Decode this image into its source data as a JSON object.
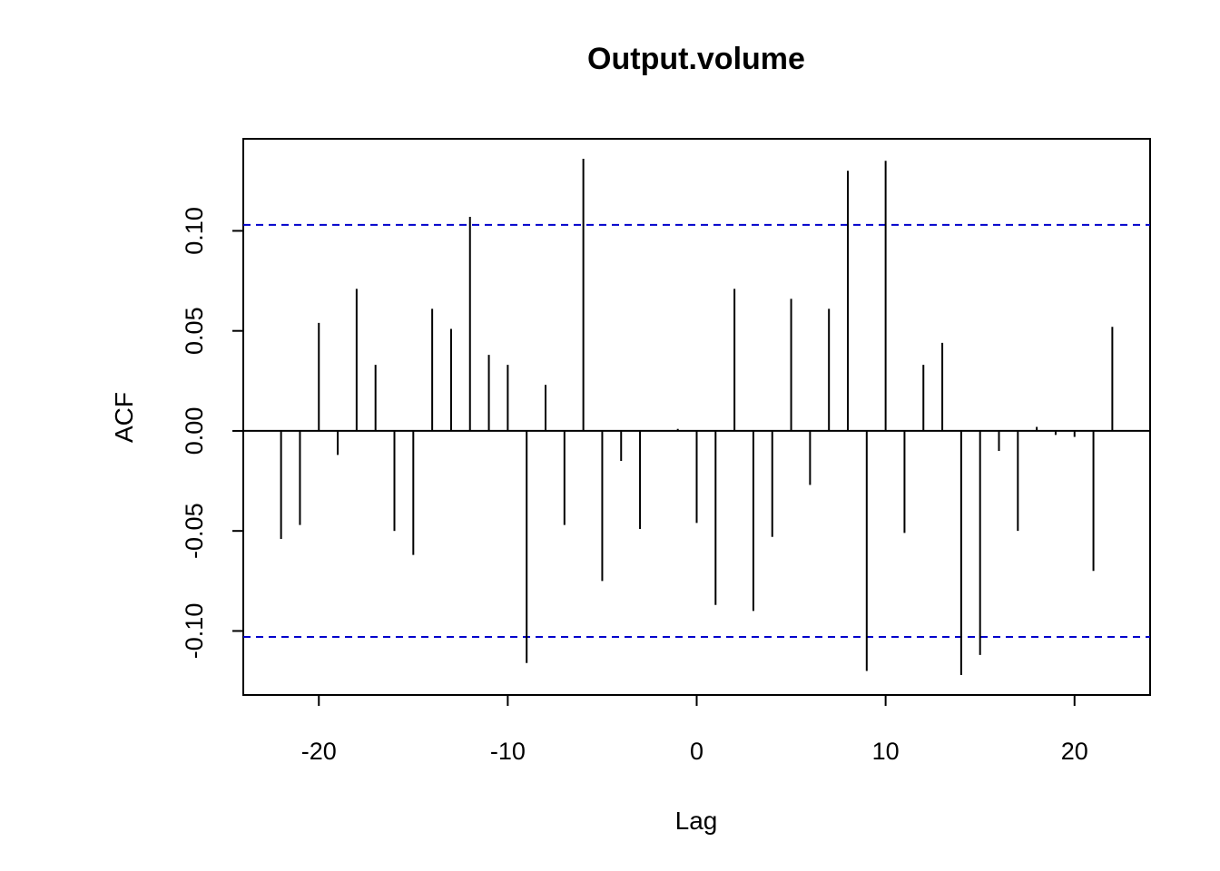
{
  "chart_data": {
    "type": "bar",
    "title": "Output.volume",
    "xlabel": "Lag",
    "ylabel": "ACF",
    "xlim": [
      -24,
      24
    ],
    "ylim": [
      -0.132,
      0.146
    ],
    "x_ticks": [
      -20,
      -10,
      0,
      10,
      20
    ],
    "x_tick_labels": [
      "-20",
      "-10",
      "0",
      "10",
      "20"
    ],
    "y_ticks": [
      -0.1,
      -0.05,
      0.0,
      0.05,
      0.1
    ],
    "y_tick_labels": [
      "-0.10",
      "-0.05",
      "0.00",
      "0.05",
      "0.10"
    ],
    "confidence_bound": 0.103,
    "colors": {
      "bars": "#000000",
      "bounds": "#0000cc",
      "frame": "#000000"
    },
    "x": [
      -22,
      -21,
      -20,
      -19,
      -18,
      -17,
      -16,
      -15,
      -14,
      -13,
      -12,
      -11,
      -10,
      -9,
      -8,
      -7,
      -6,
      -5,
      -4,
      -3,
      -2,
      -1,
      0,
      1,
      2,
      3,
      4,
      5,
      6,
      7,
      8,
      9,
      10,
      11,
      12,
      13,
      14,
      15,
      16,
      17,
      18,
      19,
      20,
      21,
      22
    ],
    "values": [
      -0.054,
      -0.047,
      0.054,
      -0.012,
      0.071,
      0.033,
      -0.05,
      -0.062,
      0.061,
      0.051,
      0.107,
      0.038,
      0.033,
      -0.116,
      0.023,
      -0.047,
      0.136,
      -0.075,
      -0.015,
      -0.049,
      0.0,
      0.001,
      -0.046,
      -0.087,
      0.071,
      -0.09,
      -0.053,
      0.066,
      -0.027,
      0.061,
      0.13,
      -0.12,
      0.135,
      -0.051,
      0.033,
      0.044,
      -0.122,
      -0.112,
      -0.01,
      -0.05,
      0.002,
      -0.002,
      -0.003,
      -0.07,
      0.052
    ]
  }
}
